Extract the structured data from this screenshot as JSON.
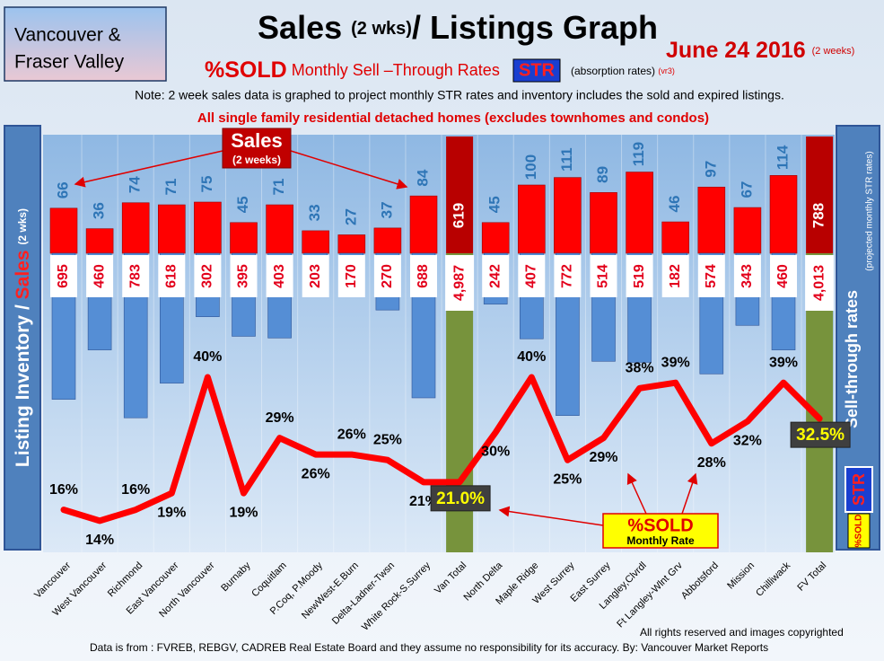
{
  "header": {
    "region": [
      "Vancouver &",
      "Fraser Valley"
    ],
    "title": {
      "main": "Sales",
      "sub": "(2 wks)",
      "rest": "/ Listings Graph"
    },
    "date": "June 24 2016",
    "date_note": "(2 weeks)",
    "str_line": {
      "sold": "%SOLD",
      "text": "Monthly Sell –Through Rates",
      "str": "STR",
      "absorption": "(absorption rates)",
      "version": "(vr3)"
    },
    "note": "Note: 2 week sales data is graphed to project monthly STR rates and inventory includes the sold and expired listings.",
    "scope": "All single family residential detached homes (excludes townhomes and condos)"
  },
  "chart_data": {
    "type": "bar",
    "y_label": {
      "inventory": "Listing Inventory /",
      "sales": "Sales",
      "period": "(2 wks)"
    },
    "y2_label": {
      "main": "Sell-through rates",
      "sub": "(projected monthly STR rates)",
      "str": "STR",
      "sold": "%SOLD"
    },
    "categories": [
      "Vancouver",
      "West Vancouver",
      "Richmond",
      "East Vancouver",
      "North Vancouver",
      "Burnaby",
      "Coquitlam",
      "P.Coq, P.Moody",
      "NewWest-E.Burn",
      "Delta-Ladner-Twsn",
      "White Rock-S.Surrey",
      "Van Total",
      "North Delta",
      "Maple Ridge",
      "West Surrey",
      "East Surrey",
      "Langley,Clvrdl",
      "Ft Langley-Wlnt Grv",
      "Abbotsford",
      "Mission",
      "Chilliwack",
      "FV Total"
    ],
    "highlight": [
      11,
      21
    ],
    "series": [
      {
        "type": "bar",
        "direction": "up",
        "color": "#ff0000",
        "highlight_color": "#b80000",
        "label_color": "#2e75b6",
        "values": [
          66,
          36,
          74,
          71,
          75,
          45,
          71,
          33,
          27,
          37,
          84,
          619,
          45,
          100,
          111,
          89,
          119,
          46,
          97,
          67,
          114,
          788
        ]
      },
      {
        "type": "bar",
        "direction": "down",
        "color": "#558ed5",
        "highlight_color": "#77933c",
        "label_color": "#e3001b",
        "values": [
          695,
          460,
          783,
          618,
          302,
          395,
          403,
          203,
          170,
          270,
          688,
          4987,
          242,
          407,
          772,
          514,
          519,
          182,
          574,
          343,
          460,
          4013
        ],
        "value_labels": [
          "695",
          "460",
          "783",
          "618",
          "302",
          "395",
          "403",
          "203",
          "170",
          "270",
          "688",
          "4,987",
          "242",
          "407",
          "772",
          "514",
          "519",
          "182",
          "574",
          "343",
          "460",
          "4,013"
        ]
      },
      {
        "type": "line",
        "color": "#ff0000",
        "values": [
          16,
          14,
          16,
          19,
          40,
          19,
          29,
          26,
          26,
          25,
          21,
          21.0,
          30,
          40,
          25,
          29,
          38,
          39,
          28,
          32,
          39,
          32.5
        ],
        "value_labels": [
          "16%",
          "14%",
          "16%",
          "19%",
          "40%",
          "19%",
          "29%",
          "26%",
          "26%",
          "25%",
          "21%",
          "21.0%",
          "30%",
          "40%",
          "25%",
          "29%",
          "38%",
          "39%",
          "28%",
          "32%",
          "39%",
          "32.5%"
        ]
      }
    ],
    "annotations": {
      "sales": "Sales",
      "sales_note": "(2 weeks)",
      "sold": "%SOLD",
      "sold_note": "Monthly Rate"
    }
  },
  "footer": {
    "rights": "All rights reserved and  images copyrighted",
    "source": "Data is from : FVREB, REBGV, CADREB Real Estate Board and they assume no responsibility for its accuracy. By: Vancouver Market Reports"
  }
}
